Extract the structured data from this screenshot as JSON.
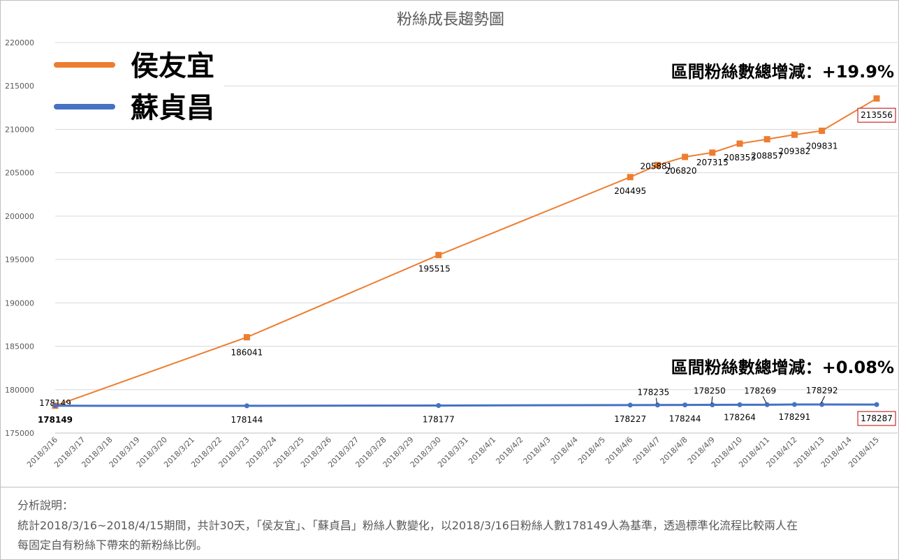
{
  "chart_data": {
    "type": "line",
    "title": "粉絲成長趨勢圖",
    "ylim": [
      175000,
      220000
    ],
    "y_ticks": [
      "175000",
      "180000",
      "185000",
      "190000",
      "195000",
      "200000",
      "205000",
      "210000",
      "215000",
      "220000"
    ],
    "grid": "horizontal",
    "categories": [
      "2018/3/16",
      "2018/3/17",
      "2018/3/18",
      "2018/3/19",
      "2018/3/20",
      "2018/3/21",
      "2018/3/22",
      "2018/3/23",
      "2018/3/24",
      "2018/3/25",
      "2018/3/26",
      "2018/3/27",
      "2018/3/28",
      "2018/3/29",
      "2018/3/30",
      "2018/3/31",
      "2018/4/1",
      "2018/4/2",
      "2018/4/3",
      "2018/4/4",
      "2018/4/5",
      "2018/4/6",
      "2018/4/7",
      "2018/4/8",
      "2018/4/9",
      "2018/4/10",
      "2018/4/11",
      "2018/4/12",
      "2018/4/13",
      "2018/4/14",
      "2018/4/15"
    ],
    "legend_position": "top-left",
    "series": [
      {
        "name": "侯友宜",
        "color": "#ED7D31",
        "marker": "square",
        "points": [
          {
            "x": "2018/3/16",
            "y": 178149,
            "label": "178149"
          },
          {
            "x": "2018/3/23",
            "y": 186041,
            "label": "186041"
          },
          {
            "x": "2018/3/30",
            "y": 195515,
            "label": "195515"
          },
          {
            "x": "2018/4/6",
            "y": 204495,
            "label": "204495"
          },
          {
            "x": "2018/4/7",
            "y": 205881,
            "label": "205881"
          },
          {
            "x": "2018/4/8",
            "y": 206820,
            "label": "206820"
          },
          {
            "x": "2018/4/9",
            "y": 207315,
            "label": "207315"
          },
          {
            "x": "2018/4/10",
            "y": 208353,
            "label": "208353"
          },
          {
            "x": "2018/4/11",
            "y": 208857,
            "label": "208857"
          },
          {
            "x": "2018/4/12",
            "y": 209382,
            "label": "209382"
          },
          {
            "x": "2018/4/13",
            "y": 209831,
            "label": "209831"
          },
          {
            "x": "2018/4/15",
            "y": 213556,
            "label": "213556",
            "boxed": true
          }
        ],
        "summary": "區間粉絲數總增減：+19.9%"
      },
      {
        "name": "蘇貞昌",
        "color": "#4472C4",
        "marker": "circle",
        "points": [
          {
            "x": "2018/3/16",
            "y": 178149
          },
          {
            "x": "2018/3/23",
            "y": 178144,
            "label": "178144"
          },
          {
            "x": "2018/3/30",
            "y": 178177,
            "label": "178177"
          },
          {
            "x": "2018/4/6",
            "y": 178227,
            "label": "178227"
          },
          {
            "x": "2018/4/7",
            "y": 178235,
            "label": "178235"
          },
          {
            "x": "2018/4/8",
            "y": 178244,
            "label": "178244"
          },
          {
            "x": "2018/4/9",
            "y": 178250,
            "label": "178250"
          },
          {
            "x": "2018/4/10",
            "y": 178264,
            "label": "178264"
          },
          {
            "x": "2018/4/11",
            "y": 178269,
            "label": "178269"
          },
          {
            "x": "2018/4/12",
            "y": 178291,
            "label": "178291"
          },
          {
            "x": "2018/4/13",
            "y": 178292,
            "label": "178292"
          },
          {
            "x": "2018/4/15",
            "y": 178287,
            "label": "178287",
            "boxed": true
          }
        ],
        "summary": "區間粉絲數總增減：+0.08%"
      }
    ]
  },
  "notes": {
    "heading": "分析說明：",
    "line1": "統計2018/3/16~2018/4/15期間，共計30天，「侯友宜」、「蘇貞昌」粉絲人數變化，以2018/3/16日粉絲人數178149人為基準，透過標準化流程比較兩人在",
    "line2": "每固定自有粉絲下帶來的新粉絲比例。"
  }
}
